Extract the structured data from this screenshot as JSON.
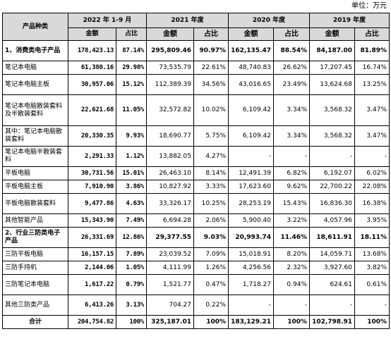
{
  "unit_label": "单位：万元",
  "header": {
    "category_col": "产品种类",
    "periods": [
      "2022 年 1-9 月",
      "2021 年度",
      "2020 年度",
      "2019 年度"
    ],
    "amount_label": "金额",
    "share_label": "占比"
  },
  "rows": [
    {
      "name": "1、消费类电子产品",
      "v": [
        "178,423.13",
        "87.14%",
        "295,809.46",
        "90.97%",
        "162,135.47",
        "88.54%",
        "84,187.00",
        "81.89%"
      ]
    },
    {
      "name": "笔记本电脑",
      "v": [
        "61,380.16",
        "29.98%",
        "73,535.79",
        "22.61%",
        "48,740.83",
        "26.62%",
        "17,207.45",
        "16.74%"
      ]
    },
    {
      "name": "笔记本电脑主板",
      "v": [
        "30,957.06",
        "15.12%",
        "112,389.39",
        "34.56%",
        "43,016.65",
        "23.49%",
        "13,624.68",
        "13.25%"
      ]
    },
    {
      "name": "笔记本电脑散装套料及半散装套料",
      "v": [
        "22,621.68",
        "11.05%",
        "32,572.82",
        "10.02%",
        "6,109.42",
        "3.34%",
        "3,568.32",
        "3.47%"
      ]
    },
    {
      "name": "其中：笔记本电脑散装套料",
      "v": [
        "20,330.35",
        "9.93%",
        "18,690.77",
        "5.75%",
        "6,109.42",
        "3.34%",
        "3,568.32",
        "3.47%"
      ]
    },
    {
      "name": "笔记本电脑半散装套料",
      "v": [
        "2,291.33",
        "1.12%",
        "13,882.05",
        "4.27%",
        "-",
        "-",
        "-",
        "-"
      ]
    },
    {
      "name": "平板电脑",
      "v": [
        "30,731.56",
        "15.01%",
        "26,463.10",
        "8.14%",
        "12,491.39",
        "6.82%",
        "6,192.07",
        "6.02%"
      ]
    },
    {
      "name": "平板电脑主板",
      "v": [
        "7,910.90",
        "3.86%",
        "10,827.92",
        "3.33%",
        "17,623.60",
        "9.62%",
        "22,700.22",
        "22.08%"
      ]
    },
    {
      "name": "平板电脑散装套料",
      "v": [
        "9,477.86",
        "4.63%",
        "33,326.17",
        "10.25%",
        "28,253.19",
        "15.43%",
        "16,836.30",
        "16.38%"
      ]
    },
    {
      "name": "其他智能产品",
      "v": [
        "15,343.90",
        "7.49%",
        "6,694.28",
        "2.06%",
        "5,900.40",
        "3.22%",
        "4,057.96",
        "3.95%"
      ]
    },
    {
      "name": "2、行业三防类电子产品",
      "v": [
        "26,331.69",
        "12.86%",
        "29,377.55",
        "9.03%",
        "20,993.74",
        "11.46%",
        "18,611.91",
        "18.11%"
      ]
    },
    {
      "name": "三防平板电脑",
      "v": [
        "16,157.15",
        "7.89%",
        "23,039.52",
        "7.09%",
        "15,018.91",
        "8.20%",
        "14,059.71",
        "13.68%"
      ]
    },
    {
      "name": "三防手持机",
      "v": [
        "2,144.06",
        "1.05%",
        "4,111.99",
        "1.26%",
        "4,256.56",
        "2.32%",
        "3,927.60",
        "3.82%"
      ]
    },
    {
      "name": "三防笔记本电脑",
      "v": [
        "1,617.22",
        "0.79%",
        "1,521.77",
        "0.47%",
        "1,718.27",
        "0.94%",
        "624.61",
        "0.61%"
      ]
    },
    {
      "name": "其他三防类产品",
      "v": [
        "6,413.26",
        "3.13%",
        "704.27",
        "0.22%",
        "-",
        "-",
        "-",
        "-"
      ]
    },
    {
      "name": "合计",
      "v": [
        "204,754.82",
        "100%",
        "325,187.01",
        "100%",
        "183,129.21",
        "100%",
        "102,798.91",
        "100%"
      ]
    }
  ]
}
